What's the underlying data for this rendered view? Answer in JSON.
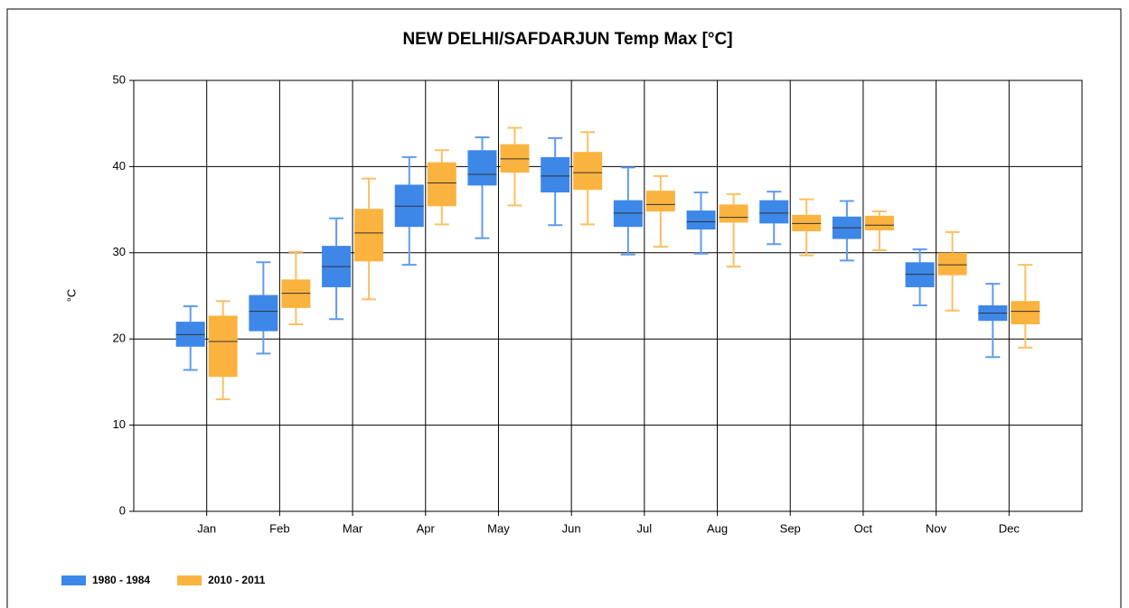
{
  "chart_data": {
    "type": "box",
    "title": "NEW DELHI/SAFDARJUN Temp Max [°C]",
    "y_label": "°C",
    "categories": [
      "Jan",
      "Feb",
      "Mar",
      "Apr",
      "May",
      "Jun",
      "Jul",
      "Aug",
      "Sep",
      "Oct",
      "Nov",
      "Dec"
    ],
    "ylim": [
      0,
      50
    ],
    "yticks": [
      0,
      10,
      20,
      30,
      40,
      50
    ],
    "grid": true,
    "legend": "bottom-left",
    "series": [
      {
        "name": "1980 - 1984",
        "color": "#3d87e9",
        "whisker_color": "#5f9cee",
        "min": [
          16.4,
          18.3,
          22.3,
          28.6,
          31.7,
          33.2,
          29.8,
          29.9,
          31.0,
          29.1,
          23.9,
          17.9
        ],
        "q1": [
          19.1,
          20.9,
          26.0,
          33.0,
          37.8,
          37.0,
          33.0,
          32.7,
          33.4,
          31.6,
          26.0,
          22.1
        ],
        "median": [
          20.5,
          23.2,
          28.4,
          35.4,
          39.1,
          38.9,
          34.6,
          33.6,
          34.6,
          32.9,
          27.5,
          23.0
        ],
        "q3": [
          22.0,
          25.1,
          30.8,
          37.9,
          41.9,
          41.1,
          36.1,
          34.9,
          36.1,
          34.2,
          28.9,
          23.9
        ],
        "max": [
          23.8,
          28.9,
          34.0,
          41.1,
          43.4,
          43.3,
          39.9,
          37.0,
          37.1,
          36.0,
          30.4,
          26.4
        ]
      },
      {
        "name": "2010 - 2011",
        "color": "#fbb33f",
        "whisker_color": "#fcc060",
        "min": [
          13.0,
          21.7,
          24.6,
          33.3,
          35.5,
          33.3,
          30.7,
          28.4,
          29.7,
          30.3,
          23.3,
          19.0
        ],
        "q1": [
          15.6,
          23.6,
          29.0,
          35.4,
          39.3,
          37.3,
          34.8,
          33.5,
          32.5,
          32.6,
          27.4,
          21.7
        ],
        "median": [
          19.7,
          25.3,
          32.3,
          38.1,
          40.9,
          39.3,
          35.6,
          34.1,
          33.4,
          33.2,
          28.6,
          23.2
        ],
        "q3": [
          22.7,
          26.9,
          35.1,
          40.5,
          42.6,
          41.7,
          37.2,
          35.6,
          34.4,
          34.3,
          30.0,
          24.4
        ],
        "max": [
          24.4,
          30.1,
          38.6,
          41.9,
          44.5,
          44.0,
          38.9,
          36.8,
          36.2,
          34.8,
          32.4,
          28.6
        ]
      }
    ]
  }
}
